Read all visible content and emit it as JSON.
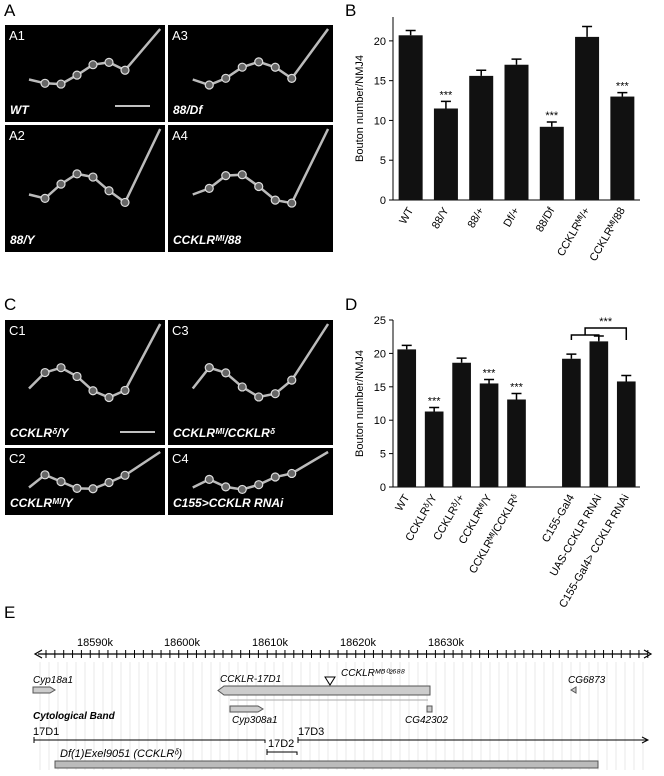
{
  "panel_labels": [
    "A",
    "B",
    "C",
    "D",
    "E"
  ],
  "images": [
    {
      "label": "A1",
      "caption": "WT"
    },
    {
      "label": "A3",
      "caption": "88/Df"
    },
    {
      "label": "A2",
      "caption": "88/Y"
    },
    {
      "label": "A4",
      "caption": "CCKLRᴹᴵ/88"
    },
    {
      "label": "C1",
      "caption": "CCKLRᵟ/Y"
    },
    {
      "label": "C3",
      "caption": "CCKLRᴹᴵ/CCKLRᵟ"
    },
    {
      "label": "C2",
      "caption": "CCKLRᴹᴵ/Y"
    },
    {
      "label": "C4",
      "caption": "C155>CCKLR RNAi"
    }
  ],
  "chart_data": [
    {
      "type": "bar",
      "ylabel": "Bouton number/NMJ4",
      "color": "#111111",
      "categories": [
        "WT",
        "88/Y",
        "88/+",
        "Df/+",
        "88/Df",
        "CCKLRᴹᴵ/+",
        "CCKLRᴹᴵ/88"
      ],
      "values": [
        20.7,
        11.5,
        15.6,
        17.0,
        9.2,
        20.5,
        13.0
      ],
      "errors": [
        0.6,
        0.9,
        0.7,
        0.7,
        0.6,
        1.3,
        0.5
      ],
      "annotations": [
        null,
        "***",
        null,
        null,
        "***",
        null,
        "***"
      ],
      "ylim": [
        0,
        23
      ],
      "yticks": [
        0,
        5,
        10,
        15,
        20
      ]
    },
    {
      "type": "bar",
      "ylabel": "Bouton number/NMJ4",
      "color": "#111111",
      "categories": [
        "WT",
        "CCKLRᵟ/Y",
        "CCKLRᵟ/+",
        "CCKLRᴹᴵ/Y",
        "CCKLRᴹᴵ/CCKLRᵟ",
        null,
        "C155-Gal4",
        "UAS-CCKLR RNAi",
        "C155-Gal4> CCKLR RNAi"
      ],
      "values": [
        20.6,
        11.3,
        18.6,
        15.5,
        13.1,
        null,
        19.2,
        21.8,
        15.8
      ],
      "errors": [
        0.6,
        0.6,
        0.7,
        0.6,
        0.9,
        null,
        0.7,
        0.8,
        0.9
      ],
      "annotations": [
        null,
        "***",
        null,
        "***",
        "***",
        null,
        null,
        null,
        null
      ],
      "bracket_annotation": "***",
      "ylim": [
        0,
        25
      ],
      "yticks": [
        0,
        5,
        10,
        15,
        20,
        25
      ]
    }
  ],
  "genome": {
    "ticks": [
      "18590k",
      "18600k",
      "18610k",
      "18620k",
      "18630k"
    ],
    "genes": [
      "Cyp18a1",
      "CCKLR-17D1",
      "CCKLRᴹᴮ⁰²⁶⁸⁸",
      "CG6873",
      "Cyp308a1",
      "CG42302"
    ],
    "band_title": "Cytological Band",
    "bands": [
      "17D1",
      "17D2",
      "17D3"
    ],
    "deficiency": "Df(1)Exel9051 (CCKLRᵟ)"
  }
}
